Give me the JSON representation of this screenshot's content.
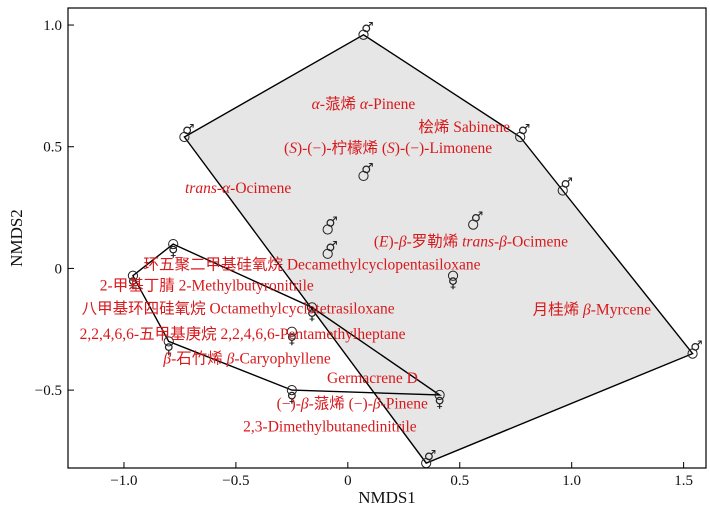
{
  "chart_data": {
    "type": "scatter",
    "xlabel": "NMDS1",
    "ylabel": "NMDS2",
    "xlim": [
      -1.25,
      1.6
    ],
    "ylim": [
      -0.82,
      1.07
    ],
    "x_ticks": [
      -1.0,
      -0.5,
      0,
      0.5,
      1.0,
      1.5
    ],
    "x_tick_labels": [
      "−1.0",
      "−0.5",
      "0",
      "0.5",
      "1.0",
      "1.5"
    ],
    "y_ticks": [
      -0.5,
      0,
      0.5,
      1.0
    ],
    "y_tick_labels": [
      "−0.5",
      "0",
      "0.5",
      "1.0"
    ],
    "grid": false,
    "legend": "none",
    "colors": {
      "male_hull_fill": "#e6e6e6",
      "hull_line": "#000000",
      "compound_text": "#d7191c",
      "points": "#222222"
    },
    "series": [
      {
        "symbol": "♂",
        "points": [
          {
            "x": -0.73,
            "y": 0.54
          },
          {
            "x": 0.07,
            "y": 0.96
          },
          {
            "x": 0.77,
            "y": 0.54
          },
          {
            "x": 0.96,
            "y": 0.32
          },
          {
            "x": 0.56,
            "y": 0.18
          },
          {
            "x": 0.07,
            "y": 0.38
          },
          {
            "x": -0.09,
            "y": 0.16
          },
          {
            "x": -0.09,
            "y": 0.06
          },
          {
            "x": 1.54,
            "y": -0.35
          },
          {
            "x": 0.35,
            "y": -0.8
          }
        ],
        "hull": [
          {
            "x": -0.73,
            "y": 0.54
          },
          {
            "x": 0.07,
            "y": 0.96
          },
          {
            "x": 0.77,
            "y": 0.54
          },
          {
            "x": 0.96,
            "y": 0.32
          },
          {
            "x": 1.54,
            "y": -0.35
          },
          {
            "x": 0.35,
            "y": -0.8
          }
        ]
      },
      {
        "symbol": "♀",
        "points": [
          {
            "x": -0.78,
            "y": 0.1
          },
          {
            "x": -0.96,
            "y": -0.03
          },
          {
            "x": -0.8,
            "y": -0.3
          },
          {
            "x": -0.16,
            "y": -0.16
          },
          {
            "x": -0.25,
            "y": -0.26
          },
          {
            "x": 0.47,
            "y": -0.03
          },
          {
            "x": 0.41,
            "y": -0.52
          },
          {
            "x": -0.25,
            "y": -0.5
          }
        ],
        "hull": [
          {
            "x": -0.78,
            "y": 0.1
          },
          {
            "x": -0.16,
            "y": -0.16
          },
          {
            "x": 0.41,
            "y": -0.52
          },
          {
            "x": -0.25,
            "y": -0.5
          },
          {
            "x": -0.8,
            "y": -0.3
          },
          {
            "x": -0.96,
            "y": -0.03
          }
        ]
      }
    ],
    "annotations": [
      {
        "parts": [
          {
            "t": "α",
            "i": true
          },
          {
            "t": "-蒎烯 "
          },
          {
            "t": "α",
            "i": true
          },
          {
            "t": "-Pinene"
          }
        ],
        "x": 0.07,
        "y": 0.655,
        "anchor": "middle"
      },
      {
        "parts": [
          {
            "t": "桧烯 Sabinene"
          }
        ],
        "x": 0.52,
        "y": 0.56,
        "anchor": "middle"
      },
      {
        "parts": [
          {
            "t": "("
          },
          {
            "t": "S",
            "i": true
          },
          {
            "t": ")-(−)-柠檬烯 ("
          },
          {
            "t": "S",
            "i": true
          },
          {
            "t": ")-(−)-Limonene"
          }
        ],
        "x": 0.18,
        "y": 0.475,
        "anchor": "middle"
      },
      {
        "parts": [
          {
            "t": "trans",
            "i": true
          },
          {
            "t": "-"
          },
          {
            "t": "α",
            "i": true
          },
          {
            "t": "-Ocimene"
          }
        ],
        "x": -0.49,
        "y": 0.31,
        "anchor": "middle"
      },
      {
        "parts": [
          {
            "t": "("
          },
          {
            "t": "E",
            "i": true
          },
          {
            "t": ")-"
          },
          {
            "t": "β",
            "i": true
          },
          {
            "t": "-罗勒烯 "
          },
          {
            "t": "trans",
            "i": true
          },
          {
            "t": "-"
          },
          {
            "t": "β",
            "i": true
          },
          {
            "t": "-Ocimene"
          }
        ],
        "x": 0.55,
        "y": 0.09,
        "anchor": "middle"
      },
      {
        "parts": [
          {
            "t": "环五聚二甲基硅氧烷 Decamethylcyclopentasiloxane"
          }
        ],
        "x": -0.16,
        "y": -0.005,
        "anchor": "middle"
      },
      {
        "parts": [
          {
            "t": "2-甲基丁腈 2-Methylbutyronitrile"
          }
        ],
        "x": -0.63,
        "y": -0.09,
        "anchor": "middle"
      },
      {
        "parts": [
          {
            "t": "八甲基环四硅氧烷 Octamethylcyclotetrasiloxane"
          }
        ],
        "x": -0.49,
        "y": -0.185,
        "anchor": "middle"
      },
      {
        "parts": [
          {
            "t": "月桂烯 "
          },
          {
            "t": "β",
            "i": true
          },
          {
            "t": "-Myrcene"
          }
        ],
        "x": 1.09,
        "y": -0.19,
        "anchor": "middle"
      },
      {
        "parts": [
          {
            "t": "2,2,4,6,6-五甲基庚烷 2,2,4,6,6-Pentamethylheptane"
          }
        ],
        "x": -0.47,
        "y": -0.29,
        "anchor": "middle"
      },
      {
        "parts": [
          {
            "t": "β",
            "i": true
          },
          {
            "t": "-石竹烯 "
          },
          {
            "t": "β",
            "i": true
          },
          {
            "t": "-Caryophyllene"
          }
        ],
        "x": -0.45,
        "y": -0.39,
        "anchor": "middle"
      },
      {
        "parts": [
          {
            "t": "Germacrene D"
          }
        ],
        "x": 0.11,
        "y": -0.47,
        "anchor": "middle"
      },
      {
        "parts": [
          {
            "t": "(−)-"
          },
          {
            "t": "β",
            "i": true
          },
          {
            "t": "-蒎烯 (−)-"
          },
          {
            "t": "β",
            "i": true
          },
          {
            "t": "-Pinene"
          }
        ],
        "x": 0.02,
        "y": -0.575,
        "anchor": "middle"
      },
      {
        "parts": [
          {
            "t": "2,3-Dimethylbutanedinitrile"
          }
        ],
        "x": -0.08,
        "y": -0.67,
        "anchor": "middle"
      }
    ]
  }
}
